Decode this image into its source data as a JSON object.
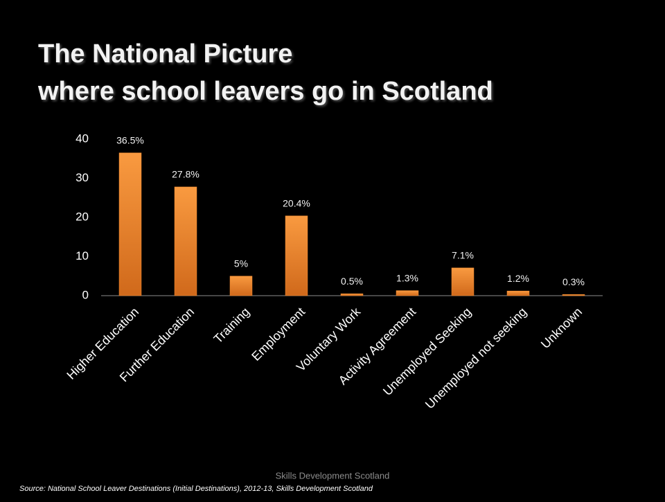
{
  "chart_data": {
    "type": "bar",
    "title": "The National Picture",
    "subtitle": "where school leavers go in Scotland",
    "categories": [
      "Higher Education",
      "Further Education",
      "Training",
      "Employment",
      "Voluntary Work",
      "Activity Agreement",
      "Unemployed Seeking",
      "Unemployed not seeking",
      "Unknown"
    ],
    "values": [
      36.5,
      27.8,
      5,
      20.4,
      0.5,
      1.3,
      7.1,
      1.2,
      0.3
    ],
    "value_labels": [
      "36.5%",
      "27.8%",
      "5%",
      "20.4%",
      "0.5%",
      "1.3%",
      "7.1%",
      "1.2%",
      "0.3%"
    ],
    "color": "#f08a2e",
    "ylim": [
      0,
      40
    ],
    "yticks": [
      0,
      10,
      20,
      30,
      40
    ],
    "grid": false,
    "footer": "Skills Development Scotland",
    "source": "Source: National School Leaver Destinations (Initial Destinations), 2012-13, Skills Development Scotland"
  }
}
